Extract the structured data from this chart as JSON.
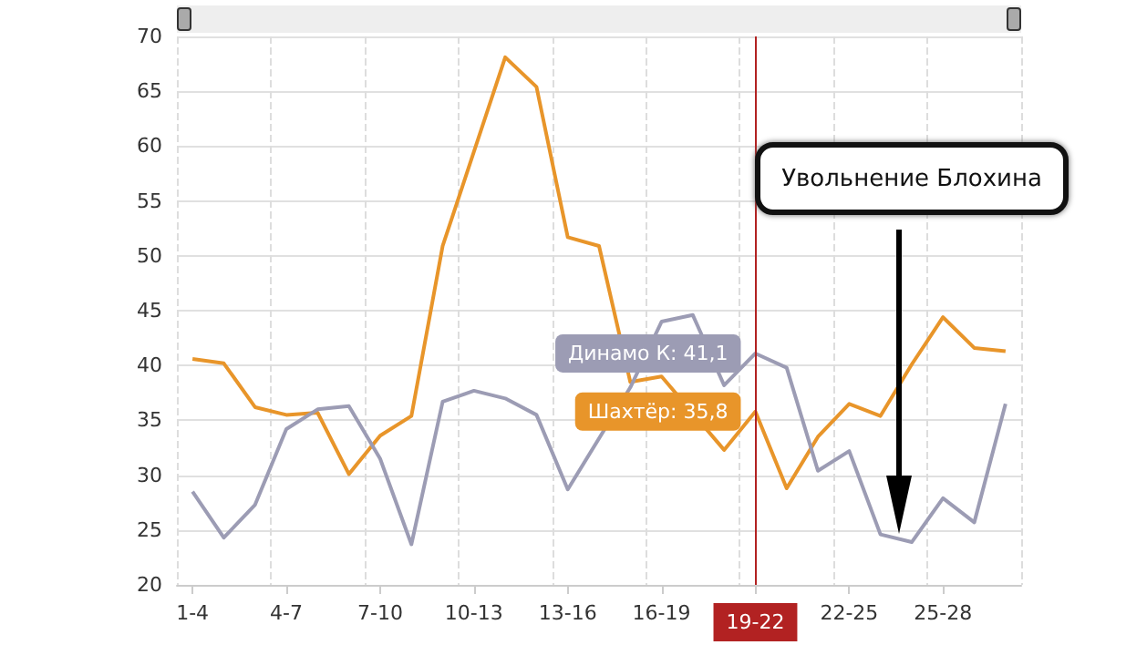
{
  "chart_data": {
    "type": "line",
    "categories": [
      "1-4",
      null,
      null,
      "4-7",
      null,
      null,
      "7-10",
      null,
      null,
      "10-13",
      null,
      null,
      "13-16",
      null,
      null,
      "16-19",
      null,
      null,
      "19-22",
      null,
      null,
      "22-25",
      null,
      null,
      "25-28",
      null,
      null
    ],
    "series": [
      {
        "color": "#e8952a",
        "values": [
          40.6,
          40.2,
          36.2,
          35.5,
          35.7,
          30.1,
          33.6,
          35.4,
          50.9,
          59.5,
          68.1,
          65.4,
          51.7,
          50.9,
          38.5,
          39.0,
          null,
          32.3,
          35.8,
          28.8,
          33.5,
          36.5,
          35.4,
          40.1,
          44.4,
          41.6,
          41.3
        ]
      },
      {
        "color": "#9c9cb4",
        "values": [
          28.5,
          24.3,
          27.3,
          34.2,
          36.0,
          36.3,
          31.5,
          23.7,
          36.7,
          37.7,
          37.0,
          35.5,
          28.7,
          null,
          38.0,
          44.0,
          44.6,
          38.2,
          41.1,
          39.8,
          30.4,
          32.2,
          24.6,
          23.9,
          27.9,
          25.7,
          36.5
        ]
      }
    ],
    "ylim": [
      20,
      70
    ],
    "yticks": [
      20,
      25,
      30,
      35,
      40,
      45,
      50,
      55,
      60,
      65,
      70
    ],
    "grid": true,
    "marker": "none",
    "ref_lines": [
      {
        "axis": "x",
        "value": "19-22",
        "color": "#b22222"
      }
    ],
    "annotations": [
      {
        "text": "Динамо К: 41,1",
        "x": "19-22",
        "y": 41.1
      },
      {
        "text": "Шахтёр: 35,8",
        "x": "19-22",
        "y": 35.8
      },
      "Увольнение Блохина"
    ]
  }
}
